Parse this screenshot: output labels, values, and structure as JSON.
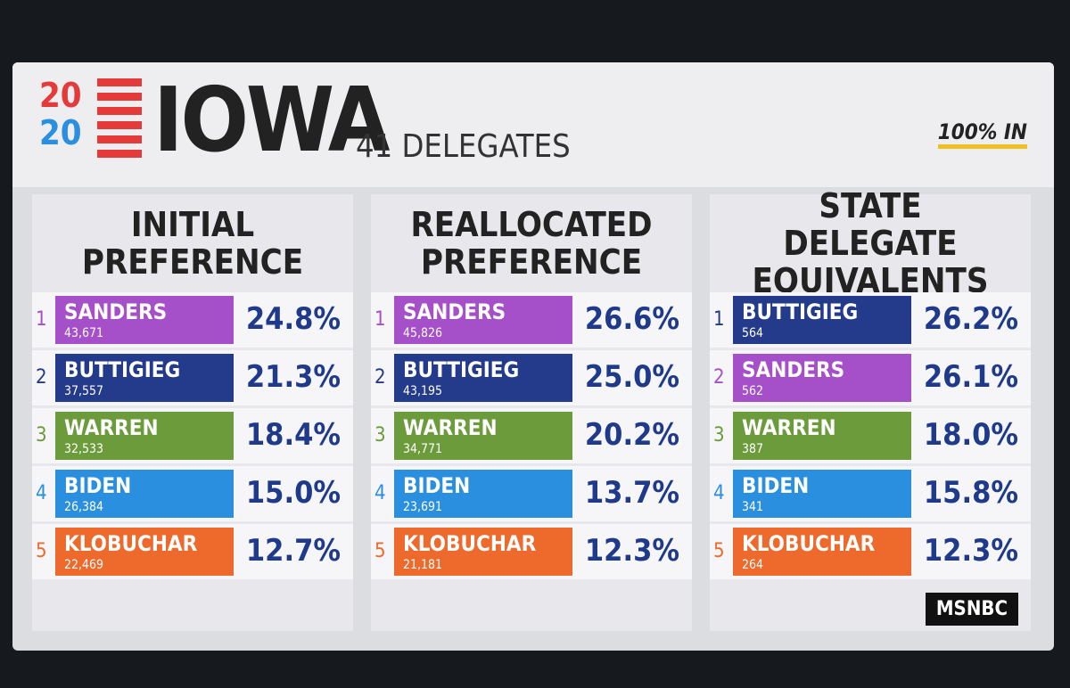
{
  "header": {
    "year_top": "20",
    "year_bottom": "20",
    "title": "IOWA",
    "subtitle": "41 DELEGATES",
    "reporting": "100% IN"
  },
  "panels": [
    {
      "title": "INITIAL PREFERENCE",
      "rows": [
        {
          "rank": "1",
          "name": "SANDERS",
          "votes": "43,671",
          "pct": "24.8%",
          "color": "#a54fc8"
        },
        {
          "rank": "2",
          "name": "BUTTIGIEG",
          "votes": "37,557",
          "pct": "21.3%",
          "color": "#243a8a"
        },
        {
          "rank": "3",
          "name": "WARREN",
          "votes": "32,533",
          "pct": "18.4%",
          "color": "#6b9b3b"
        },
        {
          "rank": "4",
          "name": "BIDEN",
          "votes": "26,384",
          "pct": "15.0%",
          "color": "#2b8fe0"
        },
        {
          "rank": "5",
          "name": "KLOBUCHAR",
          "votes": "22,469",
          "pct": "12.7%",
          "color": "#ee6a2c"
        }
      ]
    },
    {
      "title": "REALLOCATED PREFERENCE",
      "rows": [
        {
          "rank": "1",
          "name": "SANDERS",
          "votes": "45,826",
          "pct": "26.6%",
          "color": "#a54fc8"
        },
        {
          "rank": "2",
          "name": "BUTTIGIEG",
          "votes": "43,195",
          "pct": "25.0%",
          "color": "#243a8a"
        },
        {
          "rank": "3",
          "name": "WARREN",
          "votes": "34,771",
          "pct": "20.2%",
          "color": "#6b9b3b"
        },
        {
          "rank": "4",
          "name": "BIDEN",
          "votes": "23,691",
          "pct": "13.7%",
          "color": "#2b8fe0"
        },
        {
          "rank": "5",
          "name": "KLOBUCHAR",
          "votes": "21,181",
          "pct": "12.3%",
          "color": "#ee6a2c"
        }
      ]
    },
    {
      "title": "STATE DELEGATE EQUIVALENTS",
      "rows": [
        {
          "rank": "1",
          "name": "BUTTIGIEG",
          "votes": "564",
          "pct": "26.2%",
          "color": "#243a8a"
        },
        {
          "rank": "2",
          "name": "SANDERS",
          "votes": "562",
          "pct": "26.1%",
          "color": "#a54fc8"
        },
        {
          "rank": "3",
          "name": "WARREN",
          "votes": "387",
          "pct": "18.0%",
          "color": "#6b9b3b"
        },
        {
          "rank": "4",
          "name": "BIDEN",
          "votes": "341",
          "pct": "15.8%",
          "color": "#2b8fe0"
        },
        {
          "rank": "5",
          "name": "KLOBUCHAR",
          "votes": "264",
          "pct": "12.3%",
          "color": "#ee6a2c"
        }
      ]
    }
  ],
  "logo": "MSNBC"
}
